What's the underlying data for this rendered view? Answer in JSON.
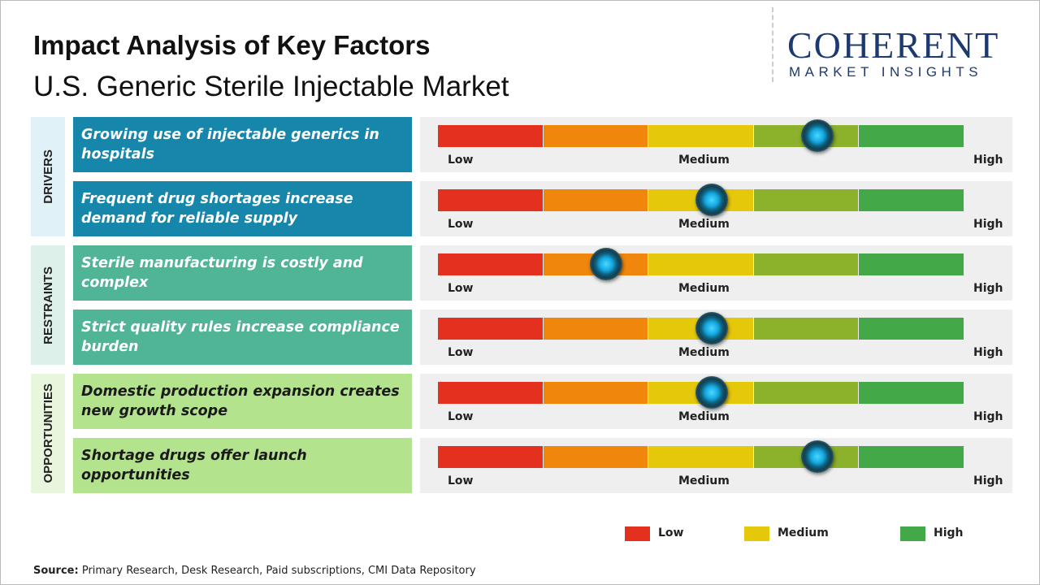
{
  "header": {
    "title": "Impact Analysis of Key Factors",
    "subtitle": "U.S. Generic Sterile Injectable Market"
  },
  "logo": {
    "name": "COHERENT",
    "tagline": "MARKET INSIGHTS"
  },
  "scale": {
    "labels": [
      "Low",
      "Medium",
      "High"
    ],
    "xlim": [
      0,
      5
    ],
    "segment_colors": [
      "#e3301f",
      "#f0870c",
      "#e6c80b",
      "#8cb12a",
      "#43a847"
    ]
  },
  "groups": [
    {
      "name": "DRIVERS",
      "color": "#1786ab",
      "side_color": "#e0f1f8",
      "text_color": "#ffffff",
      "factors": [
        {
          "text": "Growing use of injectable generics in hospitals",
          "impact": 3.6
        },
        {
          "text": "Frequent drug shortages increase demand for reliable supply",
          "impact": 2.6
        }
      ]
    },
    {
      "name": "RESTRAINTS",
      "color": "#50b497",
      "side_color": "#ddf1ea",
      "text_color": "#ffffff",
      "factors": [
        {
          "text": "Sterile manufacturing is costly and complex",
          "impact": 1.6
        },
        {
          "text": "Strict quality rules increase compliance burden",
          "impact": 2.6
        }
      ]
    },
    {
      "name": "OPPORTUNITIES",
      "color": "#b4e38d",
      "side_color": "#e7f6dc",
      "text_color": "#1a1a1a",
      "factors": [
        {
          "text": "Domestic production expansion creates new growth scope",
          "impact": 2.6
        },
        {
          "text": "Shortage drugs offer launch opportunities",
          "impact": 3.6
        }
      ]
    }
  ],
  "legend": [
    {
      "label": "Low",
      "color": "#e3301f"
    },
    {
      "label": "Medium",
      "color": "#e6c80b"
    },
    {
      "label": "High",
      "color": "#43a847"
    }
  ],
  "source": {
    "label": "Source:",
    "text": "Primary Research, Desk Research, Paid subscriptions, CMI Data Repository"
  }
}
